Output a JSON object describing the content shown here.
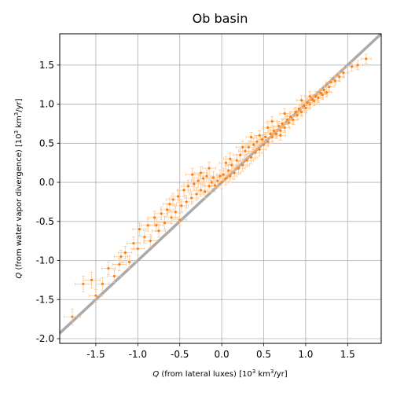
{
  "chart_data": {
    "type": "scatter",
    "title": "Ob basin",
    "xlabel": {
      "italic": "Q",
      "main": " (from lateral luxes) [10",
      "sup": "3",
      "tail": " km",
      "sup2": "3",
      "end": "/yr]"
    },
    "ylabel": {
      "italic": "Q",
      "main": " (from water vapor divergence) [10",
      "sup": "3",
      "tail": " km",
      "sup2": "3",
      "end": "/yr]"
    },
    "xlim": [
      -1.93,
      1.9
    ],
    "ylim": [
      -2.06,
      1.9
    ],
    "xticks": [
      -1.5,
      -1.0,
      -0.5,
      0.0,
      0.5,
      1.0,
      1.5
    ],
    "xtick_labels": [
      "-1.5",
      "-1.0",
      "-0.5",
      "0.0",
      "0.5",
      "1.0",
      "1.5"
    ],
    "yticks": [
      -2.0,
      -1.5,
      -1.0,
      -0.5,
      0.0,
      0.5,
      1.0,
      1.5
    ],
    "ytick_labels": [
      "-2.0",
      "-1.5",
      "-1.0",
      "-0.5",
      "0.0",
      "0.5",
      "1.0",
      "1.5"
    ],
    "grid": true,
    "reference_line": {
      "slope": 1,
      "intercept": 0,
      "color": "#aaaaaa"
    },
    "point_color": "#ff7f0e",
    "errorbar_color": "#ffbf86",
    "points": [
      [
        -1.78,
        -1.72,
        0.1,
        0.1
      ],
      [
        -1.65,
        -1.3,
        0.1,
        0.1
      ],
      [
        -1.55,
        -1.25,
        0.1,
        0.1
      ],
      [
        -1.5,
        -1.45,
        0.08,
        0.08
      ],
      [
        -1.42,
        -1.3,
        0.08,
        0.08
      ],
      [
        -1.35,
        -1.1,
        0.08,
        0.08
      ],
      [
        -1.28,
        -1.2,
        0.08,
        0.08
      ],
      [
        -1.22,
        -1.05,
        0.08,
        0.08
      ],
      [
        -1.15,
        -0.9,
        0.08,
        0.08
      ],
      [
        -1.1,
        -1.02,
        0.08,
        0.08
      ],
      [
        -1.05,
        -0.78,
        0.08,
        0.08
      ],
      [
        -1.0,
        -0.85,
        0.08,
        0.08
      ],
      [
        -0.98,
        -0.6,
        0.08,
        0.08
      ],
      [
        -0.92,
        -0.7,
        0.08,
        0.08
      ],
      [
        -0.88,
        -0.55,
        0.08,
        0.08
      ],
      [
        -0.85,
        -0.75,
        0.08,
        0.08
      ],
      [
        -0.8,
        -0.45,
        0.08,
        0.08
      ],
      [
        -0.75,
        -0.62,
        0.08,
        0.08
      ],
      [
        -0.72,
        -0.4,
        0.08,
        0.08
      ],
      [
        -0.68,
        -0.52,
        0.08,
        0.08
      ],
      [
        -0.65,
        -0.35,
        0.08,
        0.08
      ],
      [
        -0.6,
        -0.45,
        0.08,
        0.08
      ],
      [
        -0.58,
        -0.22,
        0.08,
        0.08
      ],
      [
        -0.55,
        -0.38,
        0.08,
        0.08
      ],
      [
        -0.52,
        -0.18,
        0.08,
        0.08
      ],
      [
        -0.48,
        -0.3,
        0.08,
        0.08
      ],
      [
        -0.45,
        -0.1,
        0.08,
        0.08
      ],
      [
        -0.42,
        -0.25,
        0.08,
        0.08
      ],
      [
        -0.4,
        -0.05,
        0.08,
        0.08
      ],
      [
        -0.36,
        -0.2,
        0.08,
        0.08
      ],
      [
        -0.33,
        -0.02,
        0.08,
        0.08
      ],
      [
        -0.3,
        -0.15,
        0.08,
        0.08
      ],
      [
        -0.28,
        0.02,
        0.08,
        0.08
      ],
      [
        -0.25,
        -0.1,
        0.08,
        0.08
      ],
      [
        -0.22,
        0.05,
        0.08,
        0.08
      ],
      [
        -0.2,
        -0.12,
        0.08,
        0.08
      ],
      [
        -0.18,
        0.08,
        0.08,
        0.08
      ],
      [
        -0.15,
        -0.05,
        0.08,
        0.08
      ],
      [
        -0.12,
        0.0,
        0.08,
        0.08
      ],
      [
        -0.1,
        0.06,
        0.08,
        0.08
      ],
      [
        -0.08,
        -0.04,
        0.08,
        0.08
      ],
      [
        -0.05,
        0.02,
        0.08,
        0.08
      ],
      [
        -0.02,
        0.08,
        0.08,
        0.08
      ],
      [
        0.0,
        0.0,
        0.08,
        0.08
      ],
      [
        0.02,
        0.1,
        0.08,
        0.08
      ],
      [
        0.05,
        0.05,
        0.08,
        0.08
      ],
      [
        0.08,
        0.15,
        0.08,
        0.08
      ],
      [
        0.1,
        0.08,
        0.08,
        0.08
      ],
      [
        0.12,
        0.22,
        0.08,
        0.08
      ],
      [
        0.15,
        0.12,
        0.08,
        0.08
      ],
      [
        0.18,
        0.28,
        0.08,
        0.08
      ],
      [
        0.2,
        0.18,
        0.08,
        0.08
      ],
      [
        0.22,
        0.35,
        0.08,
        0.08
      ],
      [
        0.25,
        0.22,
        0.08,
        0.08
      ],
      [
        0.28,
        0.4,
        0.08,
        0.08
      ],
      [
        0.3,
        0.28,
        0.08,
        0.08
      ],
      [
        0.32,
        0.45,
        0.08,
        0.08
      ],
      [
        0.35,
        0.32,
        0.08,
        0.08
      ],
      [
        0.38,
        0.48,
        0.08,
        0.08
      ],
      [
        0.4,
        0.38,
        0.08,
        0.08
      ],
      [
        0.42,
        0.52,
        0.08,
        0.08
      ],
      [
        0.45,
        0.42,
        0.08,
        0.08
      ],
      [
        0.48,
        0.55,
        0.06,
        0.06
      ],
      [
        0.5,
        0.48,
        0.06,
        0.06
      ],
      [
        0.52,
        0.58,
        0.06,
        0.06
      ],
      [
        0.55,
        0.52,
        0.06,
        0.06
      ],
      [
        0.58,
        0.62,
        0.06,
        0.06
      ],
      [
        0.6,
        0.58,
        0.06,
        0.06
      ],
      [
        0.62,
        0.66,
        0.06,
        0.06
      ],
      [
        0.65,
        0.62,
        0.06,
        0.06
      ],
      [
        0.68,
        0.72,
        0.06,
        0.06
      ],
      [
        0.7,
        0.66,
        0.06,
        0.06
      ],
      [
        0.72,
        0.75,
        0.06,
        0.06
      ],
      [
        0.75,
        0.7,
        0.06,
        0.06
      ],
      [
        0.78,
        0.8,
        0.06,
        0.06
      ],
      [
        0.8,
        0.76,
        0.06,
        0.06
      ],
      [
        0.82,
        0.84,
        0.06,
        0.06
      ],
      [
        0.85,
        0.8,
        0.06,
        0.06
      ],
      [
        0.88,
        0.9,
        0.06,
        0.06
      ],
      [
        0.9,
        0.86,
        0.06,
        0.06
      ],
      [
        0.92,
        0.94,
        0.06,
        0.06
      ],
      [
        0.95,
        0.9,
        0.06,
        0.06
      ],
      [
        0.98,
        0.98,
        0.06,
        0.06
      ],
      [
        1.0,
        0.95,
        0.06,
        0.06
      ],
      [
        1.02,
        1.02,
        0.06,
        0.06
      ],
      [
        1.05,
        1.0,
        0.06,
        0.06
      ],
      [
        1.08,
        1.06,
        0.06,
        0.06
      ],
      [
        1.1,
        1.04,
        0.06,
        0.06
      ],
      [
        1.12,
        1.1,
        0.06,
        0.06
      ],
      [
        1.15,
        1.08,
        0.06,
        0.06
      ],
      [
        1.18,
        1.14,
        0.06,
        0.06
      ],
      [
        1.2,
        1.12,
        0.06,
        0.06
      ],
      [
        1.22,
        1.18,
        0.06,
        0.06
      ],
      [
        1.25,
        1.15,
        0.06,
        0.06
      ],
      [
        1.28,
        1.22,
        0.06,
        0.06
      ],
      [
        1.3,
        1.28,
        0.06,
        0.06
      ],
      [
        1.35,
        1.3,
        0.06,
        0.06
      ],
      [
        1.4,
        1.35,
        0.06,
        0.06
      ],
      [
        1.45,
        1.4,
        0.06,
        0.06
      ],
      [
        1.55,
        1.48,
        0.06,
        0.06
      ],
      [
        1.62,
        1.5,
        0.06,
        0.06
      ],
      [
        1.72,
        1.58,
        0.06,
        0.06
      ],
      [
        -0.62,
        -0.28,
        0.08,
        0.08
      ],
      [
        -0.35,
        0.1,
        0.08,
        0.08
      ],
      [
        -0.15,
        0.18,
        0.08,
        0.08
      ],
      [
        0.05,
        0.25,
        0.08,
        0.08
      ],
      [
        0.25,
        0.45,
        0.08,
        0.08
      ],
      [
        0.45,
        0.6,
        0.06,
        0.06
      ],
      [
        0.6,
        0.78,
        0.06,
        0.06
      ],
      [
        0.75,
        0.88,
        0.06,
        0.06
      ],
      [
        0.95,
        1.05,
        0.06,
        0.06
      ],
      [
        -0.78,
        -0.55,
        0.08,
        0.08
      ],
      [
        -1.2,
        -0.95,
        0.08,
        0.08
      ],
      [
        -0.5,
        -0.48,
        0.08,
        0.08
      ],
      [
        0.35,
        0.58,
        0.06,
        0.06
      ],
      [
        0.55,
        0.7,
        0.06,
        0.06
      ],
      [
        1.05,
        1.1,
        0.06,
        0.06
      ],
      [
        -0.25,
        0.12,
        0.08,
        0.08
      ],
      [
        0.1,
        0.3,
        0.08,
        0.08
      ],
      [
        0.7,
        0.6,
        0.06,
        0.06
      ]
    ]
  }
}
